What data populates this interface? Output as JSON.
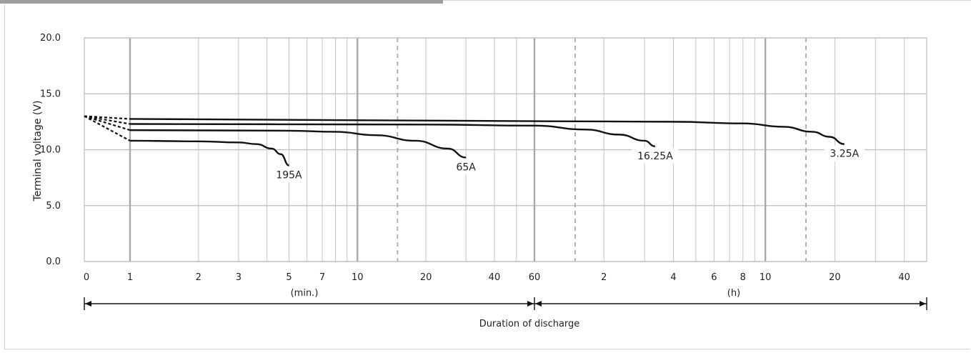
{
  "chart_data": {
    "type": "line",
    "title": "",
    "ylabel": "Terminal voltage (V)",
    "xlabel": "Duration of discharge",
    "ylim": [
      0,
      20
    ],
    "y_ticks": [
      "20.0",
      "15.0",
      "10.0",
      "5.0",
      "0.0"
    ],
    "x_ticks": [
      "0",
      "1",
      "2",
      "3",
      "5",
      "7",
      "10",
      "20",
      "40",
      "60",
      "2",
      "4",
      "6",
      "8",
      "10",
      "20",
      "40"
    ],
    "x_unit_labels": [
      "(min.)",
      "(h)"
    ],
    "x_scale": "log (minutes, then hours)",
    "x_range_minutes": [
      1,
      3000
    ],
    "grid": true,
    "series": [
      {
        "name": "195A",
        "points": [
          [
            1,
            10.8
          ],
          [
            2,
            10.75
          ],
          [
            3,
            10.65
          ],
          [
            3.6,
            10.5
          ],
          [
            4.2,
            10.1
          ],
          [
            4.6,
            9.6
          ],
          [
            5,
            8.6
          ]
        ]
      },
      {
        "name": "65A",
        "points": [
          [
            1,
            11.75
          ],
          [
            5,
            11.7
          ],
          [
            8,
            11.6
          ],
          [
            12,
            11.3
          ],
          [
            18,
            10.8
          ],
          [
            25,
            10.1
          ],
          [
            30,
            9.3
          ]
        ]
      },
      {
        "name": "16.25A",
        "points": [
          [
            1,
            12.3
          ],
          [
            20,
            12.25
          ],
          [
            60,
            12.15
          ],
          [
            100,
            11.8
          ],
          [
            140,
            11.35
          ],
          [
            180,
            10.8
          ],
          [
            200,
            10.3
          ]
        ]
      },
      {
        "name": "3.25A",
        "points": [
          [
            1,
            12.75
          ],
          [
            60,
            12.55
          ],
          [
            240,
            12.5
          ],
          [
            480,
            12.35
          ],
          [
            720,
            12.05
          ],
          [
            960,
            11.6
          ],
          [
            1140,
            11.15
          ],
          [
            1320,
            10.5
          ]
        ]
      }
    ]
  }
}
